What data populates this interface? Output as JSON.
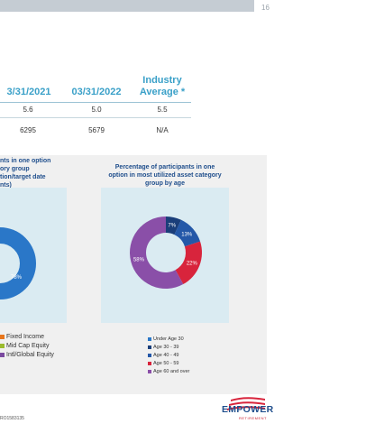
{
  "page_number": "16",
  "table": {
    "columns": [
      "3/31/2021",
      "03/31/2022",
      "Industry Average *"
    ],
    "rows": [
      [
        "5.6",
        "5.0",
        "5.5"
      ],
      [
        "6295",
        "5679",
        "N/A"
      ]
    ]
  },
  "left_chart": {
    "title_lines": [
      "nts in one option",
      "ory group",
      "tion/target date",
      "nts)"
    ],
    "visible_label": "78%"
  },
  "right_chart": {
    "title": "Percentage of participants in one option in most utilized asset category group by age"
  },
  "left_legend": [
    "Fixed Income",
    "Mid Cap Equity",
    "Intl/Global Equity"
  ],
  "left_legend_colors": [
    "#e8761c",
    "#9bbb2e",
    "#7b4aa0"
  ],
  "right_legend": [
    "Under Age 30",
    "Age 30 - 39",
    "Age 40 - 49",
    "Age 50 - 59",
    "Age 60 and over"
  ],
  "right_legend_colors": [
    "#2a77c8",
    "#1a3e7a",
    "#2458a8",
    "#d8243c",
    "#8a4fa8"
  ],
  "chart_data": {
    "type": "pie",
    "title": "Percentage of participants in one option in most utilized asset category group by age",
    "categories": [
      "Under Age 30",
      "Age 30 - 39",
      "Age 40 - 49",
      "Age 50 - 59",
      "Age 60 and over"
    ],
    "values": [
      0,
      7,
      13,
      22,
      58
    ],
    "colors": [
      "#2a77c8",
      "#1a3e7a",
      "#2458a8",
      "#d8243c",
      "#8a4fa8"
    ]
  },
  "logo": {
    "word": "EMPOWER",
    "sub": "RETIREMENT"
  },
  "footer_code": "RO1583135"
}
